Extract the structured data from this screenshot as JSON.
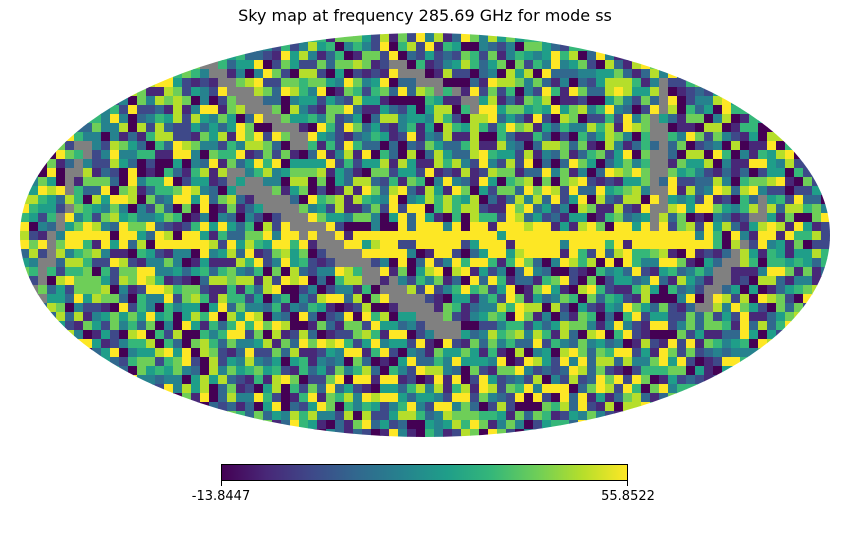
{
  "title": "Sky map at frequency 285.69 GHz for mode ss",
  "colorbar": {
    "min_label": "-13.8447",
    "max_label": "55.8522",
    "min": -13.8447,
    "max": 55.8522,
    "colormap": "viridis",
    "colors": [
      "#440154",
      "#482878",
      "#3e4989",
      "#31688e",
      "#26828e",
      "#1f9e89",
      "#35b779",
      "#6ece58",
      "#b5de2b",
      "#fde725"
    ]
  },
  "map": {
    "projection": "mollweide",
    "masked_color": "#808080",
    "background": "#ffffff"
  }
}
